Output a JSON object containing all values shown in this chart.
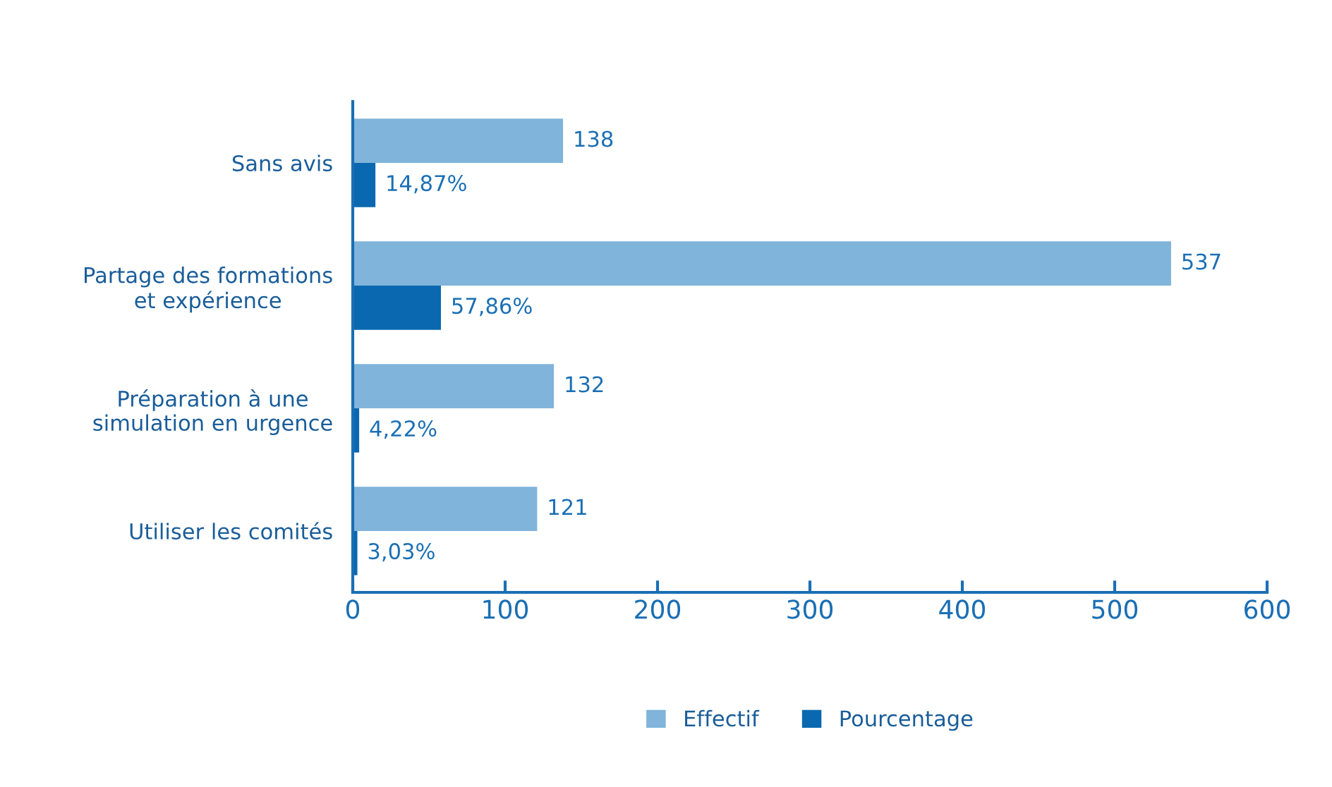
{
  "chart_data": {
    "type": "bar",
    "orientation": "horizontal",
    "categories": [
      "Sans avis",
      "Partage des formations\net expérience",
      "Préparation à une\nsimulation en urgence",
      "Utiliser les comités"
    ],
    "series": [
      {
        "name": "Effectif",
        "color": "#80b4da",
        "values": [
          138,
          537,
          132,
          121
        ],
        "value_labels": [
          "138",
          "537",
          "132",
          "121"
        ]
      },
      {
        "name": "Pourcentage",
        "color": "#0a68b0",
        "values": [
          14.87,
          57.86,
          4.22,
          3.03
        ],
        "value_labels": [
          "14,87%",
          "57,86%",
          "4,22%",
          "3,03%"
        ]
      }
    ],
    "xlim": [
      0,
      600
    ],
    "xticks": [
      0,
      100,
      200,
      300,
      400,
      500,
      600
    ],
    "grid": false,
    "legend": "bottom"
  }
}
